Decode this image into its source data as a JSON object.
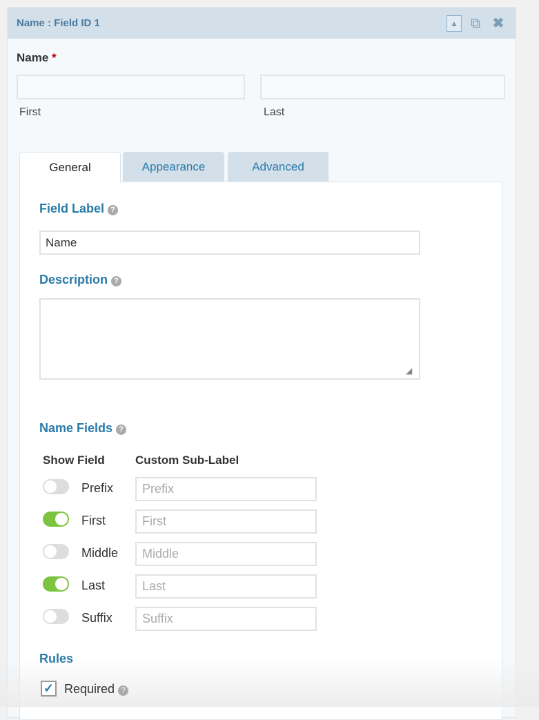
{
  "header": {
    "title": "Name : Field ID 1",
    "icons": [
      "collapse-up-icon",
      "duplicate-icon",
      "close-icon"
    ]
  },
  "preview": {
    "label": "Name",
    "required_mark": "*",
    "sub_first": "First",
    "sub_last": "Last",
    "first_value": "",
    "last_value": ""
  },
  "tabs": [
    {
      "label": "General",
      "active": true
    },
    {
      "label": "Appearance"
    },
    {
      "label": "Advanced"
    }
  ],
  "general": {
    "field_label": {
      "label": "Field Label",
      "value": "Name"
    },
    "description": {
      "label": "Description",
      "value": ""
    },
    "name_fields": {
      "label": "Name Fields",
      "col_show": "Show Field",
      "col_sublabel": "Custom Sub-Label",
      "rows": [
        {
          "name": "Prefix",
          "enabled": false,
          "placeholder": "Prefix"
        },
        {
          "name": "First",
          "enabled": true,
          "placeholder": "First"
        },
        {
          "name": "Middle",
          "enabled": false,
          "placeholder": "Middle"
        },
        {
          "name": "Last",
          "enabled": true,
          "placeholder": "Last"
        },
        {
          "name": "Suffix",
          "enabled": false,
          "placeholder": "Suffix"
        }
      ]
    },
    "rules": {
      "label": "Rules",
      "required_label": "Required",
      "required_checked": true
    }
  },
  "colors": {
    "accent": "#2a7aa8",
    "toggle_on": "#7cc33f",
    "header_bg": "#d3e0ea"
  }
}
